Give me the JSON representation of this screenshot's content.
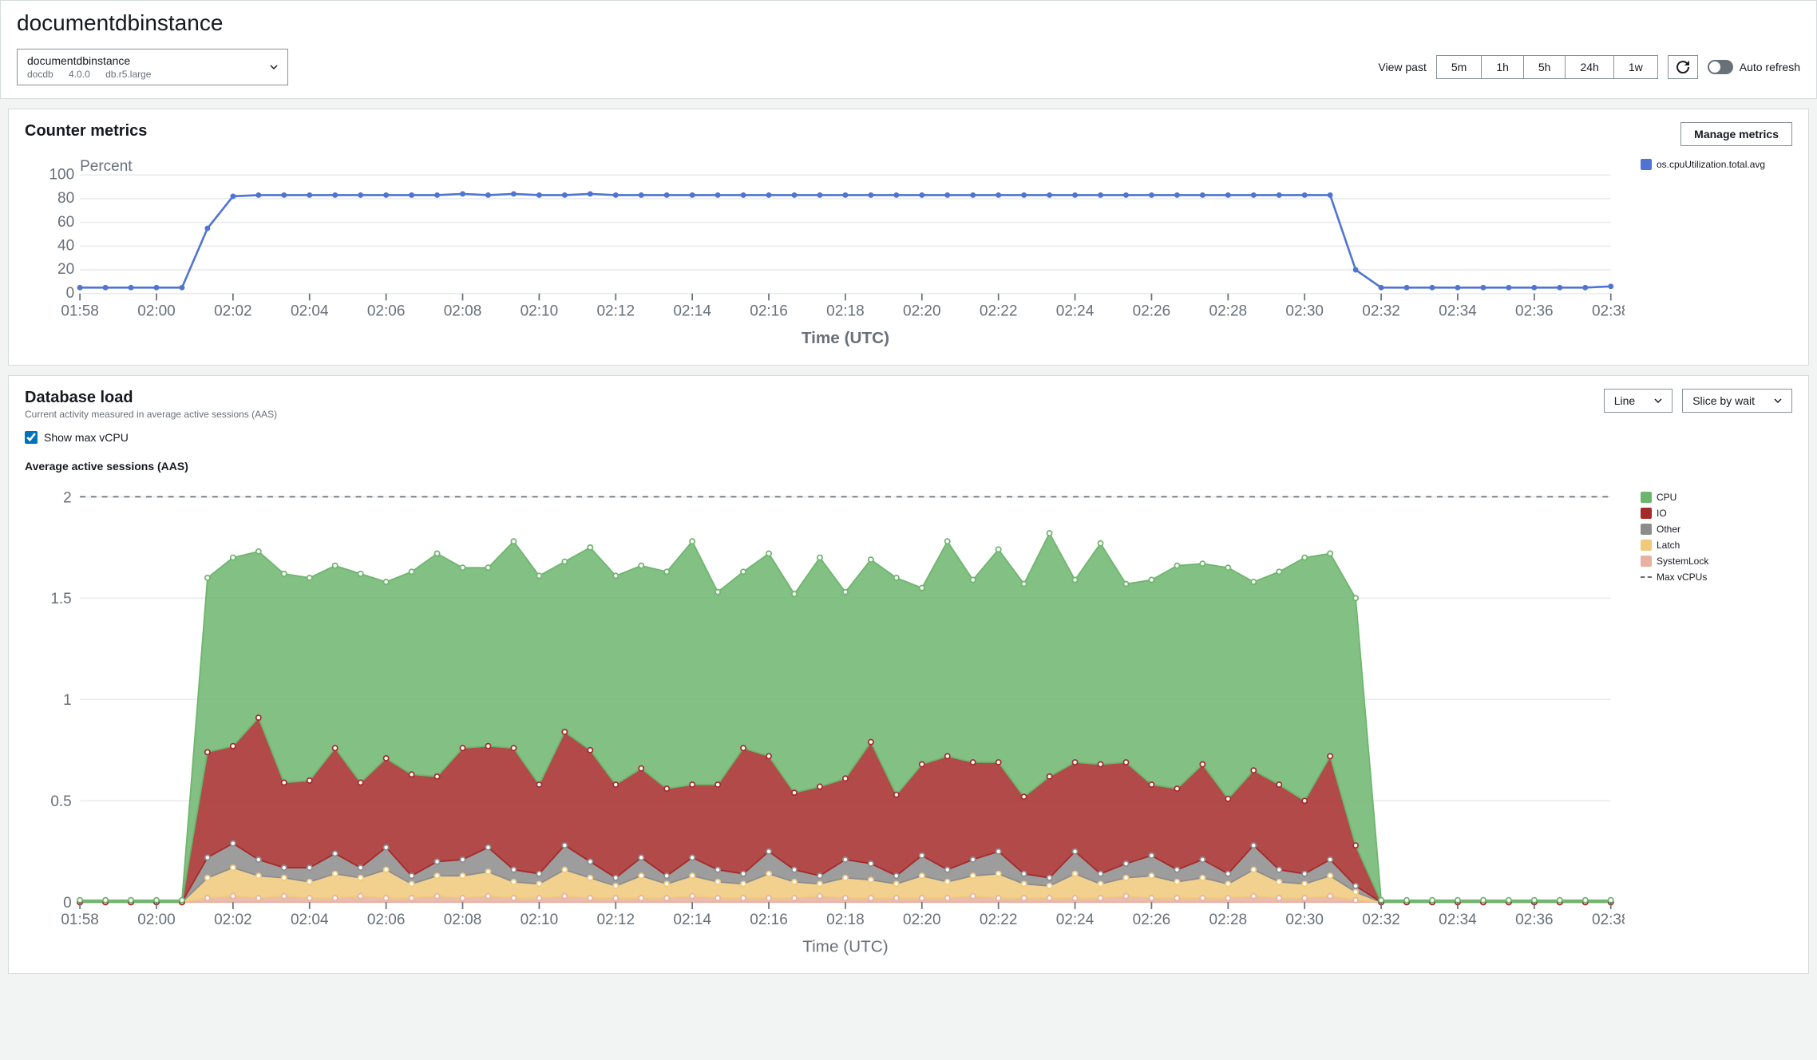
{
  "page": {
    "title": "documentdbinstance"
  },
  "instance": {
    "name": "documentdbinstance",
    "engine": "docdb",
    "version": "4.0.0",
    "class": "db.r5.large"
  },
  "viewPast": {
    "label": "View past",
    "options": [
      "5m",
      "1h",
      "5h",
      "24h",
      "1w"
    ],
    "selected": "1h"
  },
  "autoRefresh": {
    "label": "Auto refresh",
    "on": false
  },
  "counterPanel": {
    "title": "Counter metrics",
    "manageBtn": "Manage metrics",
    "yLabel": "Percent",
    "xLabel": "Time (UTC)",
    "yMax": 100,
    "yTickStep": 20,
    "legend": [
      {
        "label": "os.cpuUtilization.total.avg",
        "color": "#4f74d1"
      }
    ],
    "series": {
      "color": "#4f74d1",
      "points": [
        {
          "x": "01:58",
          "y": 5
        },
        {
          "x": "",
          "y": 5
        },
        {
          "x": "",
          "y": 5
        },
        {
          "x": "02:00",
          "y": 5
        },
        {
          "x": "",
          "y": 5
        },
        {
          "x": "",
          "y": 55
        },
        {
          "x": "02:02",
          "y": 82
        },
        {
          "x": "",
          "y": 83
        },
        {
          "x": "",
          "y": 83
        },
        {
          "x": "02:04",
          "y": 83
        },
        {
          "x": "",
          "y": 83
        },
        {
          "x": "",
          "y": 83
        },
        {
          "x": "02:06",
          "y": 83
        },
        {
          "x": "",
          "y": 83
        },
        {
          "x": "",
          "y": 83
        },
        {
          "x": "02:08",
          "y": 84
        },
        {
          "x": "",
          "y": 83
        },
        {
          "x": "",
          "y": 84
        },
        {
          "x": "02:10",
          "y": 83
        },
        {
          "x": "",
          "y": 83
        },
        {
          "x": "",
          "y": 84
        },
        {
          "x": "02:12",
          "y": 83
        },
        {
          "x": "",
          "y": 83
        },
        {
          "x": "",
          "y": 83
        },
        {
          "x": "02:14",
          "y": 83
        },
        {
          "x": "",
          "y": 83
        },
        {
          "x": "",
          "y": 83
        },
        {
          "x": "02:16",
          "y": 83
        },
        {
          "x": "",
          "y": 83
        },
        {
          "x": "",
          "y": 83
        },
        {
          "x": "02:18",
          "y": 83
        },
        {
          "x": "",
          "y": 83
        },
        {
          "x": "",
          "y": 83
        },
        {
          "x": "02:20",
          "y": 83
        },
        {
          "x": "",
          "y": 83
        },
        {
          "x": "",
          "y": 83
        },
        {
          "x": "02:22",
          "y": 83
        },
        {
          "x": "",
          "y": 83
        },
        {
          "x": "",
          "y": 83
        },
        {
          "x": "02:24",
          "y": 83
        },
        {
          "x": "",
          "y": 83
        },
        {
          "x": "",
          "y": 83
        },
        {
          "x": "02:26",
          "y": 83
        },
        {
          "x": "",
          "y": 83
        },
        {
          "x": "",
          "y": 83
        },
        {
          "x": "02:28",
          "y": 83
        },
        {
          "x": "",
          "y": 83
        },
        {
          "x": "",
          "y": 83
        },
        {
          "x": "02:30",
          "y": 83
        },
        {
          "x": "",
          "y": 83
        },
        {
          "x": "",
          "y": 20
        },
        {
          "x": "02:32",
          "y": 5
        },
        {
          "x": "",
          "y": 5
        },
        {
          "x": "",
          "y": 5
        },
        {
          "x": "02:34",
          "y": 5
        },
        {
          "x": "",
          "y": 5
        },
        {
          "x": "",
          "y": 5
        },
        {
          "x": "02:36",
          "y": 5
        },
        {
          "x": "",
          "y": 5
        },
        {
          "x": "",
          "y": 5
        },
        {
          "x": "02:38",
          "y": 6
        }
      ]
    },
    "xTicks": [
      "01:58",
      "02:00",
      "02:02",
      "02:04",
      "02:06",
      "02:08",
      "02:10",
      "02:12",
      "02:14",
      "02:16",
      "02:18",
      "02:20",
      "02:22",
      "02:24",
      "02:26",
      "02:28",
      "02:30",
      "02:32",
      "02:34",
      "02:36",
      "02:38"
    ]
  },
  "loadPanel": {
    "title": "Database load",
    "subtitle": "Current activity measured in average active sessions (AAS)",
    "chartTypeBtn": "Line",
    "sliceBtn": "Slice by wait",
    "showMaxVcpu": {
      "label": "Show max vCPU",
      "checked": true
    },
    "aasTitle": "Average active sessions (AAS)",
    "xLabel": "Time (UTC)",
    "yMax": 2,
    "yTickStep": 0.5,
    "maxVcpu": 2,
    "xTicks": [
      "01:58",
      "02:00",
      "02:02",
      "02:04",
      "02:06",
      "02:08",
      "02:10",
      "02:12",
      "02:14",
      "02:16",
      "02:18",
      "02:20",
      "02:22",
      "02:24",
      "02:26",
      "02:28",
      "02:30",
      "02:32",
      "02:34",
      "02:36",
      "02:38"
    ],
    "legend": [
      {
        "label": "CPU",
        "color": "#6db56d"
      },
      {
        "label": "IO",
        "color": "#a52a2a"
      },
      {
        "label": "Other",
        "color": "#8c8c8c"
      },
      {
        "label": "Latch",
        "color": "#f0c97a"
      },
      {
        "label": "SystemLock",
        "color": "#e8b0a0"
      },
      {
        "label": "Max vCPUs",
        "dash": true
      }
    ],
    "stacked": {
      "x": [
        0,
        1,
        2,
        3,
        4,
        5,
        6,
        7,
        8,
        9,
        10,
        11,
        12,
        13,
        14,
        15,
        16,
        17,
        18,
        19,
        20,
        21,
        22,
        23,
        24,
        25,
        26,
        27,
        28,
        29,
        30,
        31,
        32,
        33,
        34,
        35,
        36,
        37,
        38,
        39,
        40,
        41,
        42,
        43,
        44,
        45,
        46,
        47,
        48,
        49,
        50,
        51,
        52,
        53,
        54,
        55,
        56,
        57,
        58,
        59,
        60
      ],
      "series": [
        {
          "name": "SystemLock",
          "color": "#e8b0a0",
          "values": [
            0,
            0,
            0,
            0,
            0,
            0.02,
            0.03,
            0.02,
            0.03,
            0.02,
            0.02,
            0.03,
            0.02,
            0.02,
            0.03,
            0.02,
            0.03,
            0.02,
            0.02,
            0.03,
            0.02,
            0.02,
            0.02,
            0.02,
            0.03,
            0.02,
            0.02,
            0.02,
            0.02,
            0.03,
            0.02,
            0.02,
            0.02,
            0.02,
            0.02,
            0.03,
            0.02,
            0.02,
            0.02,
            0.02,
            0.02,
            0.03,
            0.02,
            0.02,
            0.02,
            0.02,
            0.03,
            0.02,
            0.02,
            0.03,
            0.01,
            0,
            0,
            0,
            0,
            0,
            0,
            0,
            0,
            0,
            0
          ]
        },
        {
          "name": "Latch",
          "color": "#f0c97a",
          "values": [
            0,
            0,
            0,
            0,
            0,
            0.1,
            0.14,
            0.11,
            0.09,
            0.08,
            0.12,
            0.09,
            0.14,
            0.07,
            0.1,
            0.11,
            0.12,
            0.08,
            0.07,
            0.13,
            0.1,
            0.06,
            0.11,
            0.07,
            0.1,
            0.08,
            0.07,
            0.12,
            0.08,
            0.06,
            0.1,
            0.09,
            0.07,
            0.11,
            0.08,
            0.1,
            0.12,
            0.07,
            0.06,
            0.12,
            0.07,
            0.09,
            0.11,
            0.08,
            0.1,
            0.07,
            0.13,
            0.08,
            0.07,
            0.1,
            0.04,
            0,
            0,
            0,
            0,
            0,
            0,
            0,
            0,
            0,
            0
          ]
        },
        {
          "name": "Other",
          "color": "#8c8c8c",
          "values": [
            0,
            0,
            0,
            0,
            0,
            0.1,
            0.12,
            0.08,
            0.05,
            0.07,
            0.1,
            0.05,
            0.11,
            0.04,
            0.07,
            0.08,
            0.12,
            0.06,
            0.05,
            0.12,
            0.08,
            0.04,
            0.09,
            0.04,
            0.09,
            0.06,
            0.05,
            0.11,
            0.06,
            0.04,
            0.09,
            0.08,
            0.04,
            0.1,
            0.06,
            0.08,
            0.11,
            0.05,
            0.04,
            0.11,
            0.05,
            0.07,
            0.1,
            0.06,
            0.09,
            0.05,
            0.12,
            0.06,
            0.05,
            0.08,
            0.03,
            0,
            0,
            0,
            0,
            0,
            0,
            0,
            0,
            0,
            0
          ]
        },
        {
          "name": "IO",
          "color": "#a52a2a",
          "values": [
            0,
            0,
            0,
            0,
            0,
            0.52,
            0.48,
            0.7,
            0.42,
            0.43,
            0.52,
            0.42,
            0.44,
            0.5,
            0.42,
            0.55,
            0.5,
            0.6,
            0.44,
            0.56,
            0.55,
            0.46,
            0.44,
            0.43,
            0.36,
            0.42,
            0.62,
            0.47,
            0.38,
            0.44,
            0.4,
            0.6,
            0.4,
            0.45,
            0.56,
            0.48,
            0.44,
            0.38,
            0.5,
            0.44,
            0.54,
            0.5,
            0.35,
            0.4,
            0.47,
            0.37,
            0.37,
            0.42,
            0.36,
            0.51,
            0.2,
            0,
            0,
            0,
            0,
            0,
            0,
            0,
            0,
            0,
            0
          ]
        },
        {
          "name": "CPU",
          "color": "#6db56d",
          "values": [
            0.01,
            0.01,
            0.01,
            0.01,
            0.01,
            0.86,
            0.93,
            0.82,
            1.03,
            1.0,
            0.9,
            1.03,
            0.87,
            1.0,
            1.1,
            0.89,
            0.88,
            1.02,
            1.03,
            0.84,
            1.0,
            1.03,
            1.0,
            1.07,
            1.2,
            0.95,
            0.87,
            1.0,
            0.98,
            1.13,
            0.92,
            0.9,
            1.07,
            0.87,
            1.06,
            0.9,
            1.05,
            1.05,
            1.2,
            0.9,
            1.09,
            0.88,
            1.01,
            1.1,
            0.99,
            1.14,
            0.93,
            1.05,
            1.2,
            1.0,
            1.22,
            0.01,
            0.01,
            0.01,
            0.01,
            0.01,
            0.01,
            0.01,
            0.01,
            0.01,
            0.01
          ]
        }
      ]
    }
  }
}
